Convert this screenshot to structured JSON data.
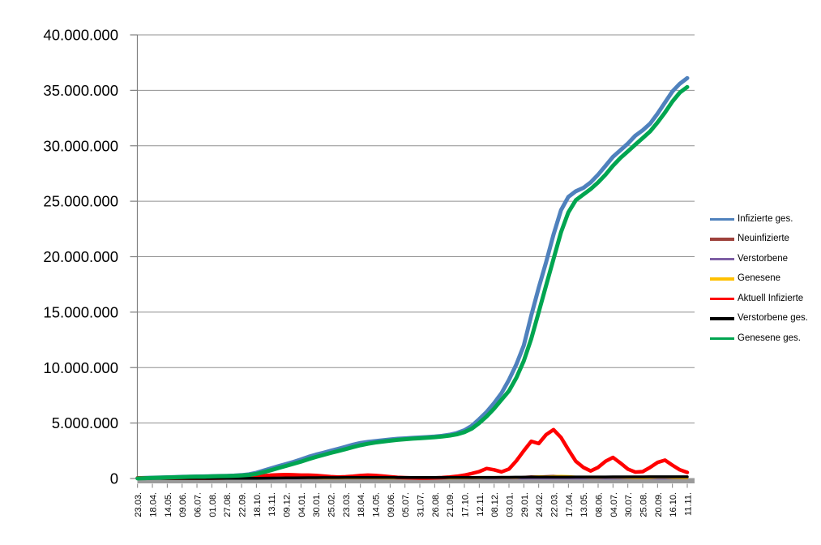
{
  "chart_data": {
    "type": "line",
    "title": "",
    "grid": true,
    "legend_position": "right",
    "unit_multiplier": 1000000,
    "y_axis": {
      "min": 0,
      "max": 40000000,
      "step": 5000000,
      "tick_labels": [
        "0",
        "5.000.000",
        "10.000.000",
        "15.000.000",
        "20.000.000",
        "25.000.000",
        "30.000.000",
        "35.000.000",
        "40.000.000"
      ]
    },
    "x_labels": [
      "23.03.",
      "18.04.",
      "14.05.",
      "09.06.",
      "06.07.",
      "01.08.",
      "27.08.",
      "22.09.",
      "18.10.",
      "13.11.",
      "09.12.",
      "04.01.",
      "30.01.",
      "25.02.",
      "23.03.",
      "18.04.",
      "14.05.",
      "09.06.",
      "05.07.",
      "31.07.",
      "26.08.",
      "21.09.",
      "17.10.",
      "12.11.",
      "08.12.",
      "03.01.",
      "29.01.",
      "24.02.",
      "22.03.",
      "17.04.",
      "13.05.",
      "08.06.",
      "04.07.",
      "30.07.",
      "25.08.",
      "20.09.",
      "16.10.",
      "11.11."
    ],
    "series": [
      {
        "name": "Infizierte ges.",
        "color": "#4F81BD",
        "width": 5,
        "values_millions": [
          0.03,
          0.05,
          0.07,
          0.09,
          0.11,
          0.13,
          0.15,
          0.17,
          0.18,
          0.19,
          0.21,
          0.23,
          0.24,
          0.26,
          0.31,
          0.38,
          0.52,
          0.72,
          0.92,
          1.12,
          1.3,
          1.5,
          1.72,
          1.95,
          2.15,
          2.32,
          2.5,
          2.68,
          2.86,
          3.05,
          3.2,
          3.3,
          3.38,
          3.45,
          3.52,
          3.58,
          3.62,
          3.66,
          3.7,
          3.74,
          3.78,
          3.85,
          3.95,
          4.1,
          4.35,
          4.75,
          5.35,
          6.0,
          6.8,
          7.7,
          8.9,
          10.3,
          12.0,
          14.7,
          17.2,
          19.5,
          22.0,
          24.2,
          25.4,
          25.9,
          26.2,
          26.7,
          27.4,
          28.2,
          29.0,
          29.6,
          30.2,
          30.9,
          31.4,
          32.0,
          32.9,
          33.9,
          34.9,
          35.6,
          36.1
        ]
      },
      {
        "name": "Neuinfizierte",
        "color": "#9E413B",
        "width": 2.5,
        "values_millions": [
          0.005,
          0.006,
          0.005,
          0.004,
          0.003,
          0.002,
          0.002,
          0.002,
          0.003,
          0.003,
          0.004,
          0.004,
          0.005,
          0.005,
          0.007,
          0.01,
          0.015,
          0.02,
          0.022,
          0.02,
          0.018,
          0.016,
          0.014,
          0.012,
          0.01,
          0.008,
          0.008,
          0.01,
          0.013,
          0.016,
          0.018,
          0.016,
          0.012,
          0.008,
          0.005,
          0.003,
          0.002,
          0.002,
          0.002,
          0.003,
          0.005,
          0.008,
          0.012,
          0.018,
          0.025,
          0.035,
          0.045,
          0.055,
          0.06,
          0.05,
          0.045,
          0.08,
          0.15,
          0.2,
          0.19,
          0.22,
          0.25,
          0.2,
          0.15,
          0.09,
          0.06,
          0.05,
          0.08,
          0.1,
          0.09,
          0.06,
          0.04,
          0.03,
          0.035,
          0.07,
          0.1,
          0.08,
          0.05,
          0.035,
          0.025
        ]
      },
      {
        "name": "Verstorbene",
        "color": "#7E5FA4",
        "width": 2.5,
        "values_millions": [
          0.001,
          0.001,
          0.001,
          0.001,
          0.001,
          0.001,
          0.001,
          0.001,
          0.001,
          0.001,
          0.001,
          0.001,
          0.001,
          0.001,
          0.001,
          0.001,
          0.001,
          0.001,
          0.001,
          0.001,
          0.001,
          0.001,
          0.001,
          0.001,
          0.001,
          0.001,
          0.001,
          0.001,
          0.001,
          0.001,
          0.001,
          0.001,
          0.001,
          0.001,
          0.001,
          0.001,
          0.001,
          0.001,
          0.001,
          0.001,
          0.001,
          0.001,
          0.001,
          0.001,
          0.001,
          0.001,
          0.001,
          0.001,
          0.001,
          0.001,
          0.001,
          0.001,
          0.001,
          0.001,
          0.001,
          0.001,
          0.001,
          0.001,
          0.001,
          0.001,
          0.001,
          0.001,
          0.001,
          0.001,
          0.001,
          0.001,
          0.001,
          0.001,
          0.001,
          0.001,
          0.001,
          0.001,
          0.001,
          0.001,
          0.001
        ]
      },
      {
        "name": "Genesene",
        "color": "#FFC000",
        "width": 2.5,
        "values_millions": [
          0.003,
          0.004,
          0.004,
          0.004,
          0.003,
          0.002,
          0.002,
          0.002,
          0.002,
          0.003,
          0.003,
          0.004,
          0.004,
          0.005,
          0.006,
          0.008,
          0.012,
          0.016,
          0.02,
          0.021,
          0.02,
          0.018,
          0.016,
          0.013,
          0.011,
          0.01,
          0.009,
          0.009,
          0.011,
          0.014,
          0.016,
          0.016,
          0.014,
          0.01,
          0.007,
          0.004,
          0.003,
          0.002,
          0.002,
          0.003,
          0.004,
          0.006,
          0.01,
          0.015,
          0.02,
          0.03,
          0.04,
          0.05,
          0.055,
          0.055,
          0.05,
          0.06,
          0.11,
          0.17,
          0.2,
          0.18,
          0.21,
          0.24,
          0.22,
          0.16,
          0.1,
          0.07,
          0.07,
          0.09,
          0.1,
          0.08,
          0.05,
          0.035,
          0.035,
          0.06,
          0.09,
          0.09,
          0.06,
          0.04,
          0.03
        ]
      },
      {
        "name": "Aktuell Infizierte",
        "color": "#FF0000",
        "width": 4.5,
        "values_millions": [
          0.05,
          0.06,
          0.06,
          0.05,
          0.04,
          0.03,
          0.03,
          0.03,
          0.03,
          0.03,
          0.04,
          0.04,
          0.05,
          0.06,
          0.08,
          0.12,
          0.18,
          0.25,
          0.3,
          0.33,
          0.35,
          0.33,
          0.3,
          0.3,
          0.28,
          0.22,
          0.16,
          0.13,
          0.15,
          0.2,
          0.26,
          0.3,
          0.28,
          0.22,
          0.15,
          0.1,
          0.07,
          0.05,
          0.04,
          0.04,
          0.05,
          0.08,
          0.13,
          0.2,
          0.3,
          0.45,
          0.62,
          0.9,
          0.78,
          0.6,
          0.85,
          1.6,
          2.5,
          3.35,
          3.15,
          3.95,
          4.4,
          3.7,
          2.6,
          1.55,
          1.0,
          0.68,
          1.0,
          1.55,
          1.9,
          1.4,
          0.85,
          0.58,
          0.62,
          1.0,
          1.45,
          1.65,
          1.2,
          0.78,
          0.55
        ]
      },
      {
        "name": "Verstorbene ges.",
        "color": "#000000",
        "width": 3.5,
        "values_millions": [
          0.0,
          0.002,
          0.004,
          0.006,
          0.007,
          0.008,
          0.009,
          0.009,
          0.009,
          0.01,
          0.01,
          0.011,
          0.012,
          0.013,
          0.015,
          0.018,
          0.022,
          0.028,
          0.035,
          0.042,
          0.05,
          0.058,
          0.065,
          0.071,
          0.076,
          0.079,
          0.081,
          0.083,
          0.085,
          0.087,
          0.088,
          0.089,
          0.09,
          0.09,
          0.091,
          0.091,
          0.091,
          0.092,
          0.092,
          0.092,
          0.093,
          0.093,
          0.094,
          0.095,
          0.096,
          0.098,
          0.1,
          0.103,
          0.106,
          0.109,
          0.112,
          0.115,
          0.118,
          0.121,
          0.124,
          0.127,
          0.13,
          0.132,
          0.134,
          0.136,
          0.138,
          0.139,
          0.141,
          0.142,
          0.144,
          0.145,
          0.147,
          0.148,
          0.149,
          0.15,
          0.151,
          0.152,
          0.153,
          0.154,
          0.155
        ]
      },
      {
        "name": "Genesene ges.",
        "color": "#00A550",
        "width": 5,
        "values_millions": [
          0.01,
          0.03,
          0.05,
          0.07,
          0.09,
          0.11,
          0.13,
          0.15,
          0.16,
          0.17,
          0.19,
          0.21,
          0.22,
          0.24,
          0.27,
          0.32,
          0.42,
          0.57,
          0.75,
          0.95,
          1.13,
          1.32,
          1.52,
          1.73,
          1.94,
          2.12,
          2.3,
          2.47,
          2.65,
          2.83,
          3.0,
          3.13,
          3.24,
          3.33,
          3.41,
          3.48,
          3.54,
          3.59,
          3.63,
          3.67,
          3.72,
          3.78,
          3.86,
          3.98,
          4.18,
          4.5,
          5.0,
          5.6,
          6.3,
          7.1,
          7.9,
          9.1,
          10.6,
          12.6,
          15.0,
          17.4,
          19.8,
          22.2,
          24.0,
          25.1,
          25.6,
          26.1,
          26.7,
          27.4,
          28.2,
          28.9,
          29.5,
          30.1,
          30.7,
          31.3,
          32.1,
          33.0,
          34.0,
          34.8,
          35.3
        ]
      }
    ],
    "style_colors": {
      "gridline": "#919191",
      "axis_line": "#808080",
      "axis_bar": "#9B9B9B",
      "text": "#000000"
    }
  }
}
